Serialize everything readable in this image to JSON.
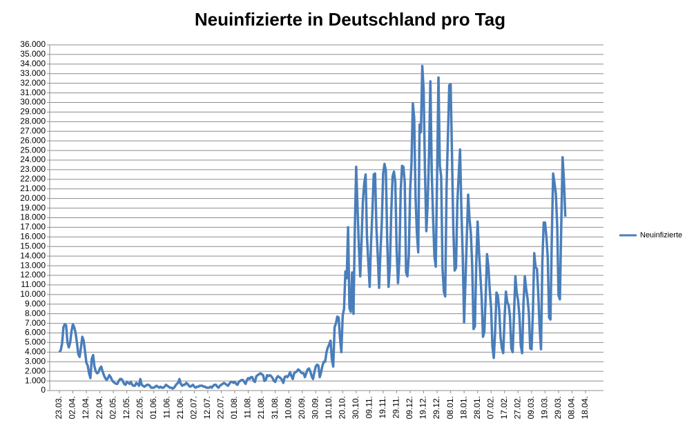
{
  "chart_data": {
    "type": "line",
    "title": "Neuinfizierte in Deutschland pro Tag",
    "categories": [
      "23.03.",
      null,
      null,
      null,
      null,
      null,
      null,
      null,
      null,
      null,
      "02.04.",
      null,
      null,
      null,
      null,
      null,
      null,
      null,
      null,
      null,
      "12.04.",
      null,
      null,
      null,
      null,
      null,
      null,
      null,
      null,
      null,
      "22.04.",
      null,
      null,
      null,
      null,
      null,
      null,
      null,
      null,
      null,
      "02.05.",
      null,
      null,
      null,
      null,
      null,
      null,
      null,
      null,
      null,
      "12.05.",
      null,
      null,
      null,
      null,
      null,
      null,
      null,
      null,
      null,
      "22.05.",
      null,
      null,
      null,
      null,
      null,
      null,
      null,
      null,
      null,
      "01.06.",
      null,
      null,
      null,
      null,
      null,
      null,
      null,
      null,
      null,
      "11.06.",
      null,
      null,
      null,
      null,
      null,
      null,
      null,
      null,
      null,
      "21.06.",
      null,
      null,
      null,
      null,
      null,
      null,
      null,
      null,
      null,
      "02.07.",
      null,
      null,
      null,
      null,
      null,
      null,
      null,
      null,
      null,
      "12.07.",
      null,
      null,
      null,
      null,
      null,
      null,
      null,
      null,
      null,
      "22.07.",
      null,
      null,
      null,
      null,
      null,
      null,
      null,
      null,
      null,
      "01.08.",
      null,
      null,
      null,
      null,
      null,
      null,
      null,
      null,
      null,
      "11.08.",
      null,
      null,
      null,
      null,
      null,
      null,
      null,
      null,
      null,
      "21.08.",
      null,
      null,
      null,
      null,
      null,
      null,
      null,
      null,
      null,
      "31.08.",
      null,
      null,
      null,
      null,
      null,
      null,
      null,
      null,
      null,
      "10.09.",
      null,
      null,
      null,
      null,
      null,
      null,
      null,
      null,
      null,
      "20.09.",
      null,
      null,
      null,
      null,
      null,
      null,
      null,
      null,
      null,
      "30.09.",
      null,
      null,
      null,
      null,
      null,
      null,
      null,
      null,
      null,
      "10.10.",
      null,
      null,
      null,
      null,
      null,
      null,
      null,
      null,
      null,
      "20.10.",
      null,
      null,
      null,
      null,
      null,
      null,
      null,
      null,
      null,
      "30.10.",
      null,
      null,
      null,
      null,
      null,
      null,
      null,
      null,
      null,
      "09.11.",
      null,
      null,
      null,
      null,
      null,
      null,
      null,
      null,
      null,
      "19.11.",
      null,
      null,
      null,
      null,
      null,
      null,
      null,
      null,
      null,
      "29.11.",
      null,
      null,
      null,
      null,
      null,
      null,
      null,
      null,
      null,
      "09.12.",
      null,
      null,
      null,
      null,
      null,
      null,
      null,
      null,
      null,
      "19.12.",
      null,
      null,
      null,
      null,
      null,
      null,
      null,
      null,
      null,
      "29.12.",
      null,
      null,
      null,
      null,
      null,
      null,
      null,
      null,
      null,
      "08.01.",
      null,
      null,
      null,
      null,
      null,
      null,
      null,
      null,
      null,
      "18.01.",
      null,
      null,
      null,
      null,
      null,
      null,
      null,
      null,
      null,
      "28.01.",
      null,
      null,
      null,
      null,
      null,
      null,
      null,
      null,
      null,
      "07.02.",
      null,
      null,
      null,
      null,
      null,
      null,
      null,
      null,
      null,
      "17.02.",
      null,
      null,
      null,
      null,
      null,
      null,
      null,
      null,
      null,
      "27.02.",
      null,
      null,
      null,
      null,
      null,
      null,
      null,
      null,
      null,
      "09.03.",
      null,
      null,
      null,
      null,
      null,
      null,
      null,
      null,
      null,
      "19.03.",
      null,
      null,
      null,
      null,
      null,
      null,
      null,
      null,
      null,
      "29.03.",
      null,
      null,
      null,
      null,
      null,
      null,
      null,
      null,
      null,
      "08.04.",
      null,
      null,
      null,
      null,
      null,
      null,
      null,
      null,
      null,
      "18.04."
    ],
    "series": [
      {
        "name": "Neuinfizierte",
        "color": "#4a7ebb",
        "values": [
          4000,
          4200,
          4900,
          6600,
          6900,
          6800,
          5000,
          4500,
          5000,
          6200,
          6900,
          6600,
          6000,
          5000,
          3800,
          3500,
          4500,
          5600,
          5200,
          4100,
          2900,
          2600,
          1800,
          1300,
          3300,
          3700,
          2500,
          2000,
          1800,
          1900,
          2300,
          2500,
          2000,
          1600,
          1300,
          1100,
          1300,
          1600,
          1400,
          1100,
          900,
          800,
          700,
          700,
          1000,
          1200,
          1200,
          1000,
          700,
          600,
          900,
          800,
          700,
          900,
          600,
          500,
          500,
          800,
          700,
          500,
          1200,
          600,
          500,
          400,
          500,
          600,
          600,
          500,
          300,
          300,
          300,
          400,
          500,
          400,
          300,
          400,
          300,
          300,
          400,
          600,
          500,
          400,
          300,
          300,
          200,
          300,
          500,
          700,
          800,
          1200,
          700,
          500,
          600,
          600,
          800,
          700,
          500,
          400,
          500,
          600,
          400,
          300,
          400,
          400,
          500,
          500,
          500,
          400,
          400,
          300,
          300,
          300,
          400,
          300,
          500,
          600,
          600,
          400,
          300,
          500,
          600,
          700,
          800,
          700,
          600,
          500,
          700,
          900,
          900,
          800,
          900,
          700,
          600,
          900,
          1000,
          1100,
          1100,
          900,
          700,
          1100,
          1300,
          1200,
          1400,
          1400,
          1000,
          900,
          1500,
          1600,
          1700,
          1800,
          1700,
          1600,
          1000,
          1100,
          1600,
          1500,
          1600,
          1500,
          1300,
          1000,
          900,
          1300,
          1500,
          1400,
          1300,
          1100,
          800,
          1400,
          1500,
          1400,
          1600,
          1900,
          1500,
          1200,
          1800,
          1900,
          2000,
          2200,
          2100,
          1900,
          1800,
          1800,
          1400,
          1800,
          2200,
          2300,
          2000,
          1500,
          1200,
          1900,
          2500,
          2700,
          2600,
          1400,
          1900,
          2600,
          3000,
          3000,
          4000,
          4500,
          4800,
          5200,
          3200,
          2500,
          6600,
          7000,
          7700,
          7600,
          5500,
          4000,
          7800,
          8500,
          12400,
          11700,
          17000,
          8600,
          8200,
          12300,
          8000,
          16800,
          23300,
          19000,
          15000,
          11900,
          15700,
          19800,
          21600,
          22500,
          16000,
          13400,
          10800,
          15300,
          18500,
          22500,
          22600,
          17000,
          14000,
          10700,
          14500,
          17500,
          22600,
          23600,
          22900,
          15700,
          10800,
          13000,
          18600,
          22300,
          22800,
          21700,
          14600,
          11200,
          13600,
          20800,
          23400,
          23300,
          21700,
          12300,
          11900,
          14100,
          20800,
          23700,
          29900,
          28400,
          20200,
          16400,
          14400,
          27700,
          26900,
          33800,
          31300,
          22800,
          16600,
          19500,
          24700,
          32200,
          22800,
          18000,
          14000,
          12900,
          22500,
          32600,
          23400,
          22300,
          12700,
          10300,
          9800,
          21200,
          26400,
          31800,
          31900,
          24700,
          16900,
          12500,
          12800,
          19600,
          22500,
          25100,
          18700,
          13900,
          7100,
          11400,
          15900,
          20400,
          17900,
          16400,
          13000,
          6400,
          6700,
          13200,
          17600,
          14600,
          12100,
          9700,
          5600,
          6100,
          9800,
          14200,
          12900,
          10500,
          8600,
          4600,
          3400,
          6100,
          10200,
          9900,
          8400,
          5600,
          4400,
          3900,
          7600,
          10300,
          9200,
          8900,
          7700,
          4400,
          4000,
          8000,
          11900,
          10200,
          9400,
          7800,
          4700,
          3900,
          9000,
          11900,
          10600,
          9600,
          8100,
          4400,
          4300,
          8200,
          14300,
          12800,
          12700,
          10000,
          6500,
          4300,
          13400,
          17500,
          17500,
          16000,
          13800,
          7600,
          7400,
          15800,
          22600,
          21600,
          20500,
          17200,
          9900,
          9500,
          17100,
          24300,
          21900,
          18100,
          null,
          null,
          null,
          null,
          null,
          null,
          null,
          null,
          null,
          null,
          null,
          null,
          null,
          null,
          null
        ]
      }
    ],
    "ylim": [
      0,
      36000
    ],
    "yticks": [
      0,
      {
        "value": 1000,
        "label": "1.000"
      },
      {
        "value": 2000,
        "label": "2.000"
      },
      {
        "value": 3000,
        "label": "3.000"
      },
      {
        "value": 4000,
        "label": "4.000"
      },
      {
        "value": 5000,
        "label": "5.000"
      },
      {
        "value": 6000,
        "label": "6.000"
      },
      {
        "value": 7000,
        "label": "7.000"
      },
      {
        "value": 8000,
        "label": "8.000"
      },
      {
        "value": 9000,
        "label": "9.000"
      },
      {
        "value": 10000,
        "label": "10.000"
      },
      {
        "value": 11000,
        "label": "11.000"
      },
      {
        "value": 12000,
        "label": "12.000"
      },
      {
        "value": 13000,
        "label": "13.000"
      },
      {
        "value": 14000,
        "label": "14.000"
      },
      {
        "value": 15000,
        "label": "15.000"
      },
      {
        "value": 16000,
        "label": "16.000"
      },
      {
        "value": 17000,
        "label": "17.000"
      },
      {
        "value": 18000,
        "label": "18.000"
      },
      {
        "value": 19000,
        "label": "19.000"
      },
      {
        "value": 20000,
        "label": "20.000"
      },
      {
        "value": 21000,
        "label": "21.000"
      },
      {
        "value": 22000,
        "label": "22.000"
      },
      {
        "value": 23000,
        "label": "23.000"
      },
      {
        "value": 24000,
        "label": "24.000"
      },
      {
        "value": 25000,
        "label": "25.000"
      },
      {
        "value": 26000,
        "label": "26.000"
      },
      {
        "value": 27000,
        "label": "27.000"
      },
      {
        "value": 28000,
        "label": "28.000"
      },
      {
        "value": 29000,
        "label": "29.000"
      },
      {
        "value": 30000,
        "label": "30.000"
      },
      {
        "value": 31000,
        "label": "31.000"
      },
      {
        "value": 32000,
        "label": "32.000"
      },
      {
        "value": 33000,
        "label": "33.000"
      },
      {
        "value": 34000,
        "label": "34.000"
      },
      {
        "value": 35000,
        "label": "35.000"
      },
      {
        "value": 36000,
        "label": "36.000"
      }
    ],
    "grid": true,
    "legend": "right"
  }
}
